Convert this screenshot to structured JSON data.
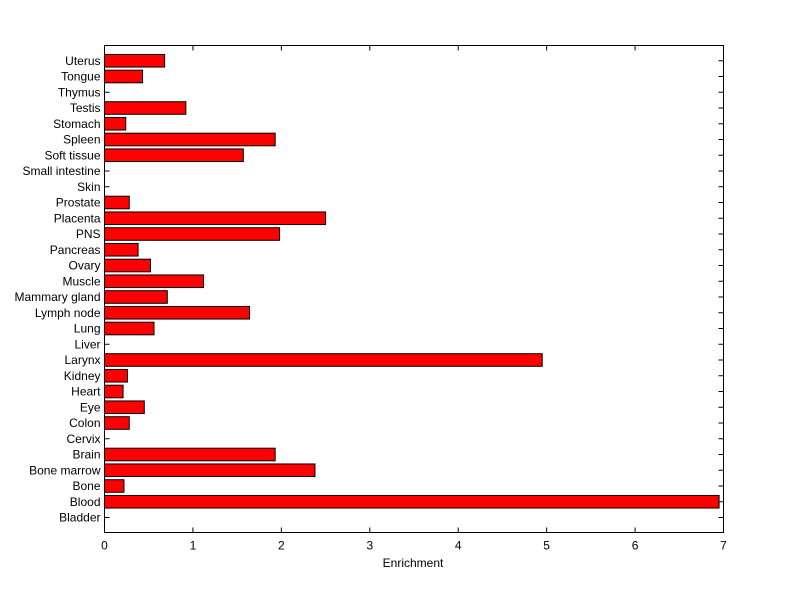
{
  "chart_data": {
    "type": "bar",
    "orientation": "horizontal",
    "categories": [
      "Bladder",
      "Blood",
      "Bone",
      "Bone marrow",
      "Brain",
      "Cervix",
      "Colon",
      "Eye",
      "Heart",
      "Kidney",
      "Larynx",
      "Liver",
      "Lung",
      "Lymph node",
      "Mammary gland",
      "Muscle",
      "Ovary",
      "Pancreas",
      "PNS",
      "Placenta",
      "Prostate",
      "Skin",
      "Small intestine",
      "Soft tissue",
      "Spleen",
      "Stomach",
      "Testis",
      "Thymus",
      "Tongue",
      "Uterus"
    ],
    "values": [
      0,
      6.95,
      0.22,
      2.38,
      1.93,
      0,
      0.28,
      0.45,
      0.21,
      0.26,
      4.95,
      0,
      0.56,
      1.64,
      0.71,
      1.12,
      0.52,
      0.38,
      1.98,
      2.5,
      0.28,
      0,
      0,
      1.57,
      1.93,
      0.24,
      0.92,
      0,
      0.43,
      0.68
    ],
    "xlabel": "Enrichment",
    "ylabel": "",
    "title": "",
    "xlim": [
      0,
      7
    ],
    "xticks": [
      "0",
      "1",
      "2",
      "3",
      "4",
      "5",
      "6",
      "7"
    ],
    "grid": false,
    "bar_color": "#ff0000",
    "edge_color": "#000000"
  }
}
